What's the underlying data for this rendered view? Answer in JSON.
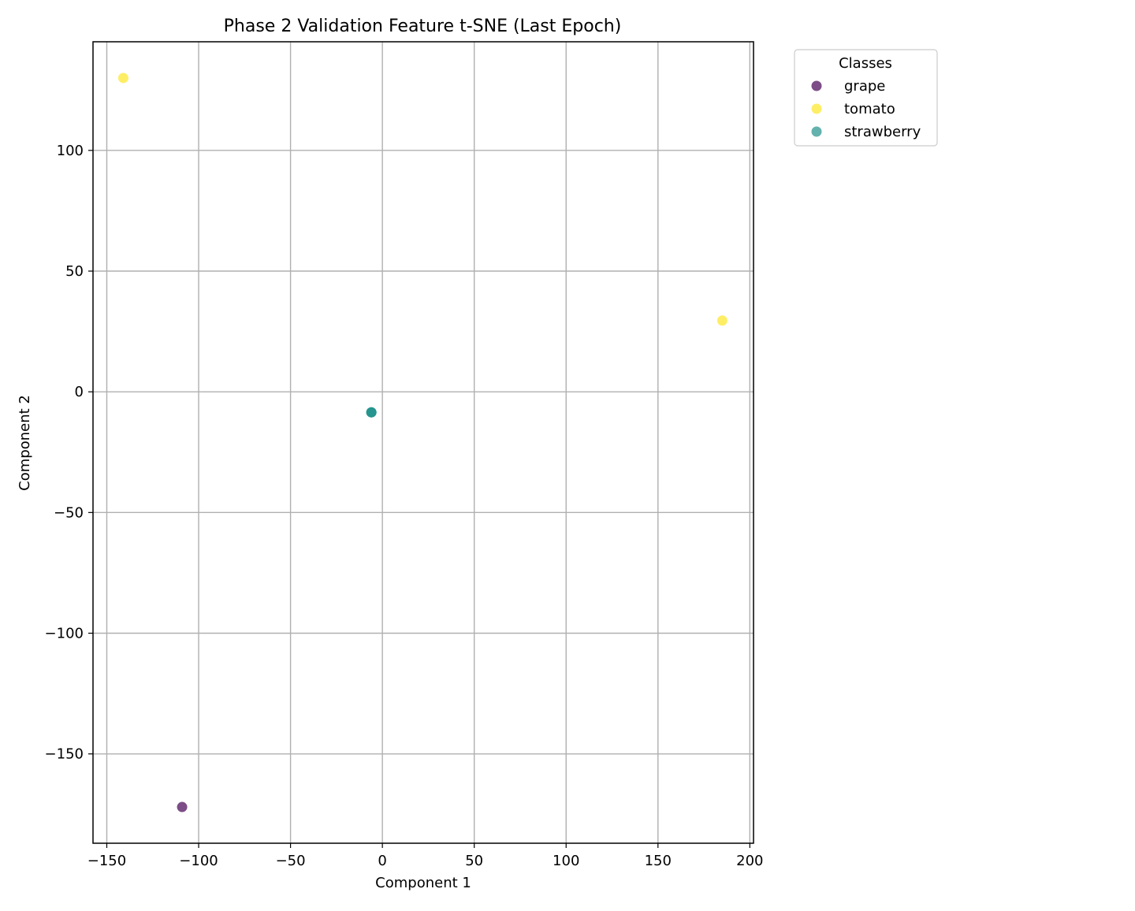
{
  "chart_data": {
    "type": "scatter",
    "title": "Phase 2 Validation Feature t-SNE (Last Epoch)",
    "xlabel": "Component 1",
    "ylabel": "Component 2",
    "xlim": [
      -157.5,
      202
    ],
    "ylim": [
      -187,
      145
    ],
    "xticks": [
      -150,
      -100,
      -50,
      0,
      50,
      100,
      150,
      200
    ],
    "yticks": [
      -150,
      -100,
      -50,
      0,
      50,
      100
    ],
    "grid": true,
    "legend": {
      "title": "Classes",
      "placement": "outside-top-right"
    },
    "series": [
      {
        "name": "grape",
        "color": "#440154",
        "x": [
          -109
        ],
        "y": [
          -172
        ]
      },
      {
        "name": "tomato",
        "color": "#fde725",
        "x": [
          -141,
          185
        ],
        "y": [
          130,
          29.5
        ]
      },
      {
        "name": "strawberry",
        "color": "#21918c",
        "x": [
          -6,
          -6,
          -6
        ],
        "y": [
          -8.5,
          -8.5,
          -8.5
        ]
      }
    ]
  }
}
